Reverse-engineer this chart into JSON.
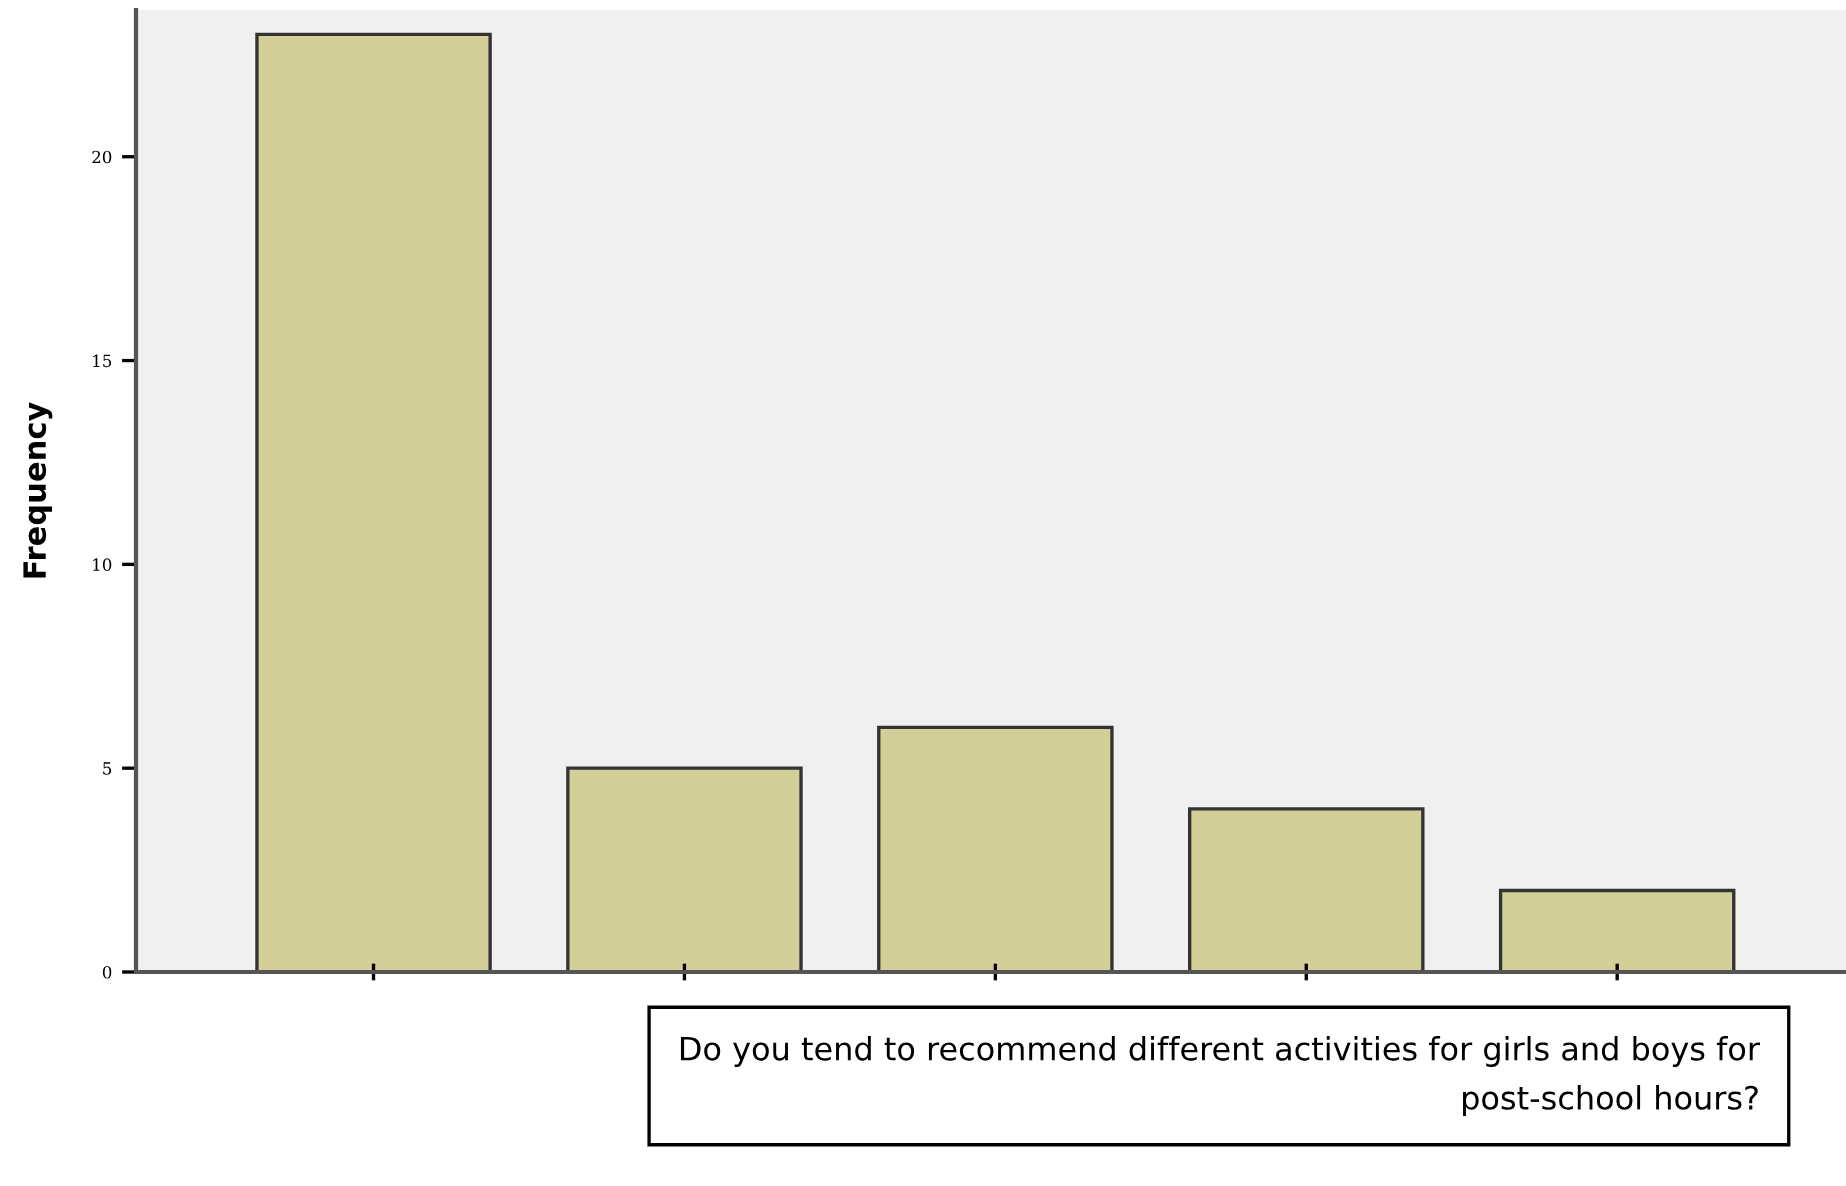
{
  "chart_data": {
    "type": "bar",
    "categories": [
      null,
      null,
      null,
      null,
      null
    ],
    "values": [
      23,
      5,
      6,
      4,
      2
    ],
    "color": "#d3cf98",
    "ylabel": "Frequency",
    "xlabel": "Do you tend to recommend different activities for girls and boys for\npost-school hours?",
    "ylim": [
      0,
      23.6
    ],
    "yticks": [
      0,
      5,
      10,
      15,
      20
    ],
    "grid": false,
    "legend": false
  }
}
